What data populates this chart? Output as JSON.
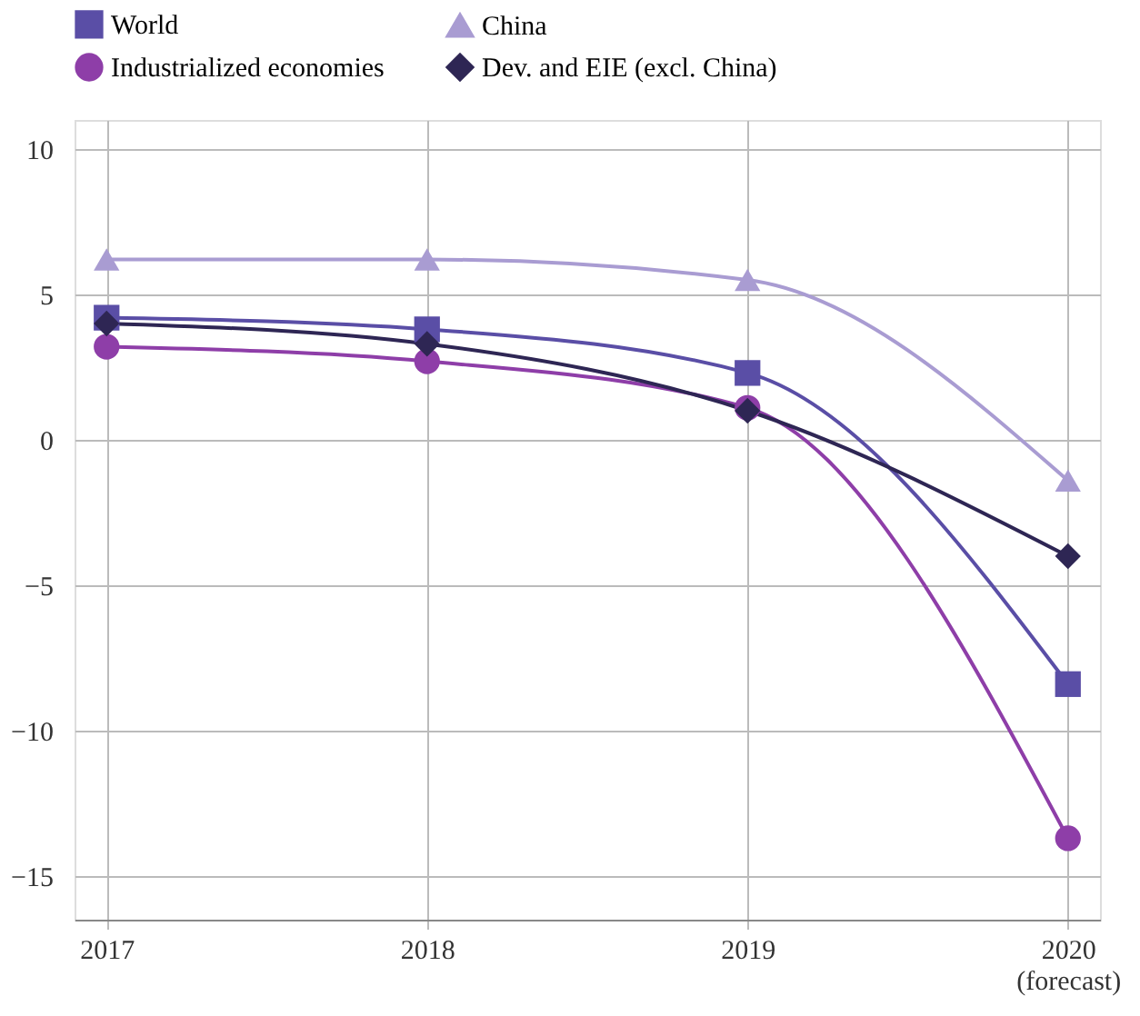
{
  "chart_data": {
    "type": "line",
    "categories": [
      "2017",
      "2018",
      "2019",
      "2020\n(forecast)"
    ],
    "series": [
      {
        "name": "World",
        "color": "#5a4ea6",
        "marker": "square",
        "values": [
          4.2,
          3.8,
          2.3,
          -8.4
        ]
      },
      {
        "name": "China",
        "color": "#a99cd2",
        "marker": "triangle",
        "values": [
          6.2,
          6.2,
          5.5,
          -1.4
        ]
      },
      {
        "name": "Industrialized economies",
        "color": "#8e3ea8",
        "marker": "circle",
        "values": [
          3.2,
          2.7,
          1.1,
          -13.7
        ]
      },
      {
        "name": "Dev. and EIE (excl. China)",
        "color": "#2e2654",
        "marker": "diamond",
        "values": [
          4.0,
          3.3,
          1.0,
          -4.0
        ]
      }
    ],
    "ylim": [
      -16.5,
      11
    ],
    "yticks": [
      -15,
      -10,
      -5,
      0,
      5,
      10
    ],
    "grid": true,
    "legend": "top",
    "line_style": "solid"
  }
}
